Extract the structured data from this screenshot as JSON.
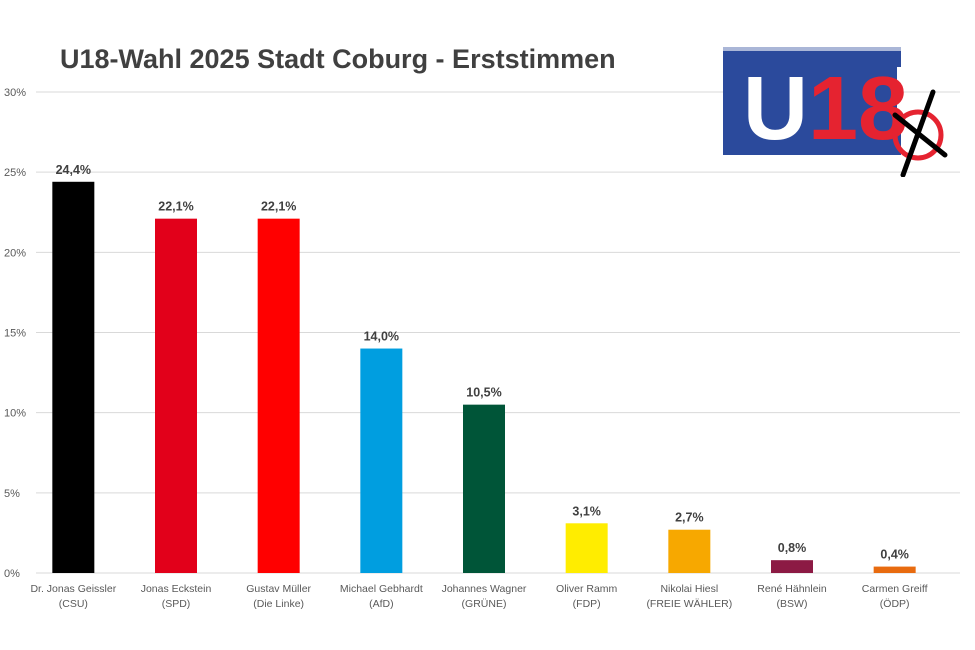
{
  "chart_data": {
    "type": "bar",
    "title": "U18-Wahl 2025 Stadt Coburg - Erststimmen",
    "xlabel": "",
    "ylabel": "",
    "ylim": [
      0,
      30
    ],
    "yticks": [
      0,
      5,
      10,
      15,
      20,
      25,
      30
    ],
    "ytick_labels": [
      "0%",
      "5%",
      "10%",
      "15%",
      "20%",
      "25%",
      "30%"
    ],
    "grid": true,
    "categories": [
      {
        "name": "Dr. Jonas Geissler",
        "party": "(CSU)"
      },
      {
        "name": "Jonas Eckstein",
        "party": "(SPD)"
      },
      {
        "name": "Gustav Müller",
        "party": "(Die Linke)"
      },
      {
        "name": "Michael Gebhardt",
        "party": "(AfD)"
      },
      {
        "name": "Johannes Wagner",
        "party": "(GRÜNE)"
      },
      {
        "name": "Oliver Ramm",
        "party": "(FDP)"
      },
      {
        "name": "Nikolai Hiesl",
        "party": "(FREIE WÄHLER)"
      },
      {
        "name": "René Hähnlein",
        "party": "(BSW)"
      },
      {
        "name": "Carmen Greiff",
        "party": "(ÖDP)"
      }
    ],
    "values": [
      24.4,
      22.1,
      22.1,
      14.0,
      10.5,
      3.1,
      2.7,
      0.8,
      0.4
    ],
    "value_labels": [
      "24,4%",
      "22,1%",
      "22,1%",
      "14,0%",
      "10,5%",
      "3,1%",
      "2,7%",
      "0,8%",
      "0,4%"
    ],
    "colors": [
      "#000000",
      "#e2001a",
      "#ff0000",
      "#009ee0",
      "#005538",
      "#ffed00",
      "#f7a800",
      "#8c1a44",
      "#e86b0f"
    ]
  },
  "logo": {
    "text_u": "U",
    "text_18": "18",
    "bg_color": "#2b4a9c",
    "accent_color": "#e52330"
  }
}
